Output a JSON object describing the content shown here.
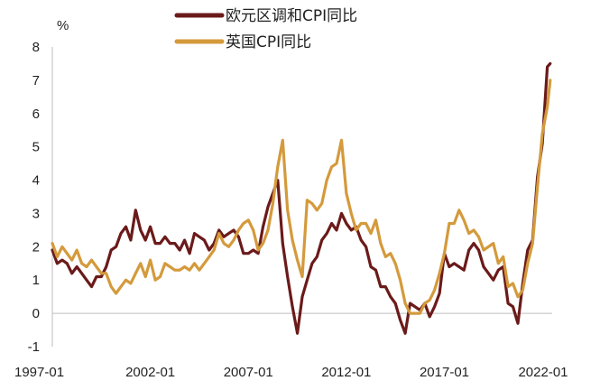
{
  "chart_data": {
    "type": "line",
    "title": "",
    "ylabel": "%",
    "xlabel": "",
    "ylim": [
      -1,
      8
    ],
    "yticks": [
      "-1",
      "0",
      "1",
      "2",
      "3",
      "4",
      "5",
      "6",
      "7",
      "8"
    ],
    "xlim": [
      1997.0,
      2022.5
    ],
    "xticks": [
      "1997-01",
      "2002-01",
      "2007-01",
      "2012-01",
      "2017-01",
      "2022-01"
    ],
    "grid": false,
    "legend_position": "top-center",
    "series": [
      {
        "name": "欧元区调和CPI同比",
        "color": "#6b1a1a",
        "points": [
          [
            1997.0,
            1.9
          ],
          [
            1997.25,
            1.5
          ],
          [
            1997.5,
            1.6
          ],
          [
            1997.75,
            1.5
          ],
          [
            1998.0,
            1.2
          ],
          [
            1998.25,
            1.4
          ],
          [
            1998.5,
            1.2
          ],
          [
            1998.75,
            1.0
          ],
          [
            1999.0,
            0.8
          ],
          [
            1999.25,
            1.1
          ],
          [
            1999.5,
            1.1
          ],
          [
            1999.75,
            1.4
          ],
          [
            2000.0,
            1.9
          ],
          [
            2000.25,
            2.0
          ],
          [
            2000.5,
            2.4
          ],
          [
            2000.75,
            2.6
          ],
          [
            2001.0,
            2.2
          ],
          [
            2001.25,
            3.1
          ],
          [
            2001.5,
            2.5
          ],
          [
            2001.75,
            2.2
          ],
          [
            2002.0,
            2.6
          ],
          [
            2002.25,
            2.1
          ],
          [
            2002.5,
            2.1
          ],
          [
            2002.75,
            2.3
          ],
          [
            2003.0,
            2.1
          ],
          [
            2003.25,
            2.1
          ],
          [
            2003.5,
            1.9
          ],
          [
            2003.75,
            2.2
          ],
          [
            2004.0,
            1.8
          ],
          [
            2004.25,
            2.4
          ],
          [
            2004.5,
            2.3
          ],
          [
            2004.75,
            2.2
          ],
          [
            2005.0,
            1.9
          ],
          [
            2005.25,
            2.1
          ],
          [
            2005.5,
            2.5
          ],
          [
            2005.75,
            2.3
          ],
          [
            2006.0,
            2.4
          ],
          [
            2006.25,
            2.5
          ],
          [
            2006.5,
            2.3
          ],
          [
            2006.75,
            1.8
          ],
          [
            2007.0,
            1.8
          ],
          [
            2007.25,
            1.9
          ],
          [
            2007.5,
            1.8
          ],
          [
            2007.75,
            2.6
          ],
          [
            2008.0,
            3.2
          ],
          [
            2008.25,
            3.6
          ],
          [
            2008.5,
            4.0
          ],
          [
            2008.75,
            2.1
          ],
          [
            2009.0,
            1.1
          ],
          [
            2009.25,
            0.2
          ],
          [
            2009.5,
            -0.6
          ],
          [
            2009.75,
            0.5
          ],
          [
            2010.0,
            1.0
          ],
          [
            2010.25,
            1.5
          ],
          [
            2010.5,
            1.7
          ],
          [
            2010.75,
            2.2
          ],
          [
            2011.0,
            2.4
          ],
          [
            2011.25,
            2.7
          ],
          [
            2011.5,
            2.5
          ],
          [
            2011.75,
            3.0
          ],
          [
            2012.0,
            2.7
          ],
          [
            2012.25,
            2.5
          ],
          [
            2012.5,
            2.6
          ],
          [
            2012.75,
            2.2
          ],
          [
            2013.0,
            2.0
          ],
          [
            2013.25,
            1.4
          ],
          [
            2013.5,
            1.3
          ],
          [
            2013.75,
            0.8
          ],
          [
            2014.0,
            0.8
          ],
          [
            2014.25,
            0.5
          ],
          [
            2014.5,
            0.3
          ],
          [
            2014.75,
            -0.2
          ],
          [
            2015.0,
            -0.6
          ],
          [
            2015.25,
            0.3
          ],
          [
            2015.5,
            0.2
          ],
          [
            2015.75,
            0.1
          ],
          [
            2016.0,
            0.3
          ],
          [
            2016.25,
            -0.1
          ],
          [
            2016.5,
            0.2
          ],
          [
            2016.75,
            0.6
          ],
          [
            2017.0,
            1.8
          ],
          [
            2017.25,
            1.4
          ],
          [
            2017.5,
            1.5
          ],
          [
            2017.75,
            1.4
          ],
          [
            2018.0,
            1.3
          ],
          [
            2018.25,
            1.9
          ],
          [
            2018.5,
            2.1
          ],
          [
            2018.75,
            1.9
          ],
          [
            2019.0,
            1.4
          ],
          [
            2019.25,
            1.2
          ],
          [
            2019.5,
            1.0
          ],
          [
            2019.75,
            1.3
          ],
          [
            2020.0,
            1.4
          ],
          [
            2020.25,
            0.3
          ],
          [
            2020.5,
            0.2
          ],
          [
            2020.75,
            -0.3
          ],
          [
            2021.0,
            0.9
          ],
          [
            2021.25,
            1.9
          ],
          [
            2021.5,
            2.2
          ],
          [
            2021.75,
            4.1
          ],
          [
            2022.0,
            5.1
          ],
          [
            2022.25,
            7.4
          ],
          [
            2022.4,
            7.5
          ]
        ]
      },
      {
        "name": "英国CPI同比",
        "color": "#d49a3c",
        "points": [
          [
            1997.0,
            2.1
          ],
          [
            1997.25,
            1.7
          ],
          [
            1997.5,
            2.0
          ],
          [
            1997.75,
            1.8
          ],
          [
            1998.0,
            1.6
          ],
          [
            1998.25,
            1.9
          ],
          [
            1998.5,
            1.5
          ],
          [
            1998.75,
            1.4
          ],
          [
            1999.0,
            1.6
          ],
          [
            1999.25,
            1.4
          ],
          [
            1999.5,
            1.2
          ],
          [
            1999.75,
            1.2
          ],
          [
            2000.0,
            0.8
          ],
          [
            2000.25,
            0.6
          ],
          [
            2000.5,
            0.8
          ],
          [
            2000.75,
            1.0
          ],
          [
            2001.0,
            0.9
          ],
          [
            2001.25,
            1.2
          ],
          [
            2001.5,
            1.5
          ],
          [
            2001.75,
            1.1
          ],
          [
            2002.0,
            1.6
          ],
          [
            2002.25,
            1.0
          ],
          [
            2002.5,
            1.1
          ],
          [
            2002.75,
            1.5
          ],
          [
            2003.0,
            1.4
          ],
          [
            2003.25,
            1.3
          ],
          [
            2003.5,
            1.3
          ],
          [
            2003.75,
            1.4
          ],
          [
            2004.0,
            1.3
          ],
          [
            2004.25,
            1.5
          ],
          [
            2004.5,
            1.3
          ],
          [
            2004.75,
            1.5
          ],
          [
            2005.0,
            1.7
          ],
          [
            2005.25,
            1.9
          ],
          [
            2005.5,
            2.4
          ],
          [
            2005.75,
            2.1
          ],
          [
            2006.0,
            2.0
          ],
          [
            2006.25,
            2.2
          ],
          [
            2006.5,
            2.5
          ],
          [
            2006.75,
            2.7
          ],
          [
            2007.0,
            2.8
          ],
          [
            2007.25,
            2.5
          ],
          [
            2007.5,
            1.9
          ],
          [
            2007.75,
            2.1
          ],
          [
            2008.0,
            2.5
          ],
          [
            2008.25,
            3.3
          ],
          [
            2008.5,
            4.4
          ],
          [
            2008.75,
            5.2
          ],
          [
            2009.0,
            3.1
          ],
          [
            2009.25,
            2.2
          ],
          [
            2009.5,
            1.6
          ],
          [
            2009.75,
            1.1
          ],
          [
            2010.0,
            3.4
          ],
          [
            2010.25,
            3.3
          ],
          [
            2010.5,
            3.1
          ],
          [
            2010.75,
            3.3
          ],
          [
            2011.0,
            4.0
          ],
          [
            2011.25,
            4.4
          ],
          [
            2011.5,
            4.5
          ],
          [
            2011.75,
            5.2
          ],
          [
            2012.0,
            3.6
          ],
          [
            2012.25,
            3.0
          ],
          [
            2012.5,
            2.5
          ],
          [
            2012.75,
            2.7
          ],
          [
            2013.0,
            2.7
          ],
          [
            2013.25,
            2.4
          ],
          [
            2013.5,
            2.8
          ],
          [
            2013.75,
            2.1
          ],
          [
            2014.0,
            1.7
          ],
          [
            2014.25,
            1.8
          ],
          [
            2014.5,
            1.5
          ],
          [
            2014.75,
            1.0
          ],
          [
            2015.0,
            0.3
          ],
          [
            2015.25,
            0.0
          ],
          [
            2015.5,
            0.0
          ],
          [
            2015.75,
            0.0
          ],
          [
            2016.0,
            0.3
          ],
          [
            2016.25,
            0.4
          ],
          [
            2016.5,
            0.7
          ],
          [
            2016.75,
            1.2
          ],
          [
            2017.0,
            1.8
          ],
          [
            2017.25,
            2.7
          ],
          [
            2017.5,
            2.7
          ],
          [
            2017.75,
            3.1
          ],
          [
            2018.0,
            2.8
          ],
          [
            2018.25,
            2.4
          ],
          [
            2018.5,
            2.5
          ],
          [
            2018.75,
            2.3
          ],
          [
            2019.0,
            1.9
          ],
          [
            2019.25,
            2.0
          ],
          [
            2019.5,
            2.1
          ],
          [
            2019.75,
            1.5
          ],
          [
            2020.0,
            1.7
          ],
          [
            2020.25,
            0.8
          ],
          [
            2020.5,
            0.9
          ],
          [
            2020.75,
            0.5
          ],
          [
            2021.0,
            0.7
          ],
          [
            2021.25,
            1.5
          ],
          [
            2021.5,
            2.1
          ],
          [
            2021.75,
            3.8
          ],
          [
            2022.0,
            5.4
          ],
          [
            2022.25,
            6.2
          ],
          [
            2022.4,
            7.0
          ]
        ]
      }
    ]
  }
}
